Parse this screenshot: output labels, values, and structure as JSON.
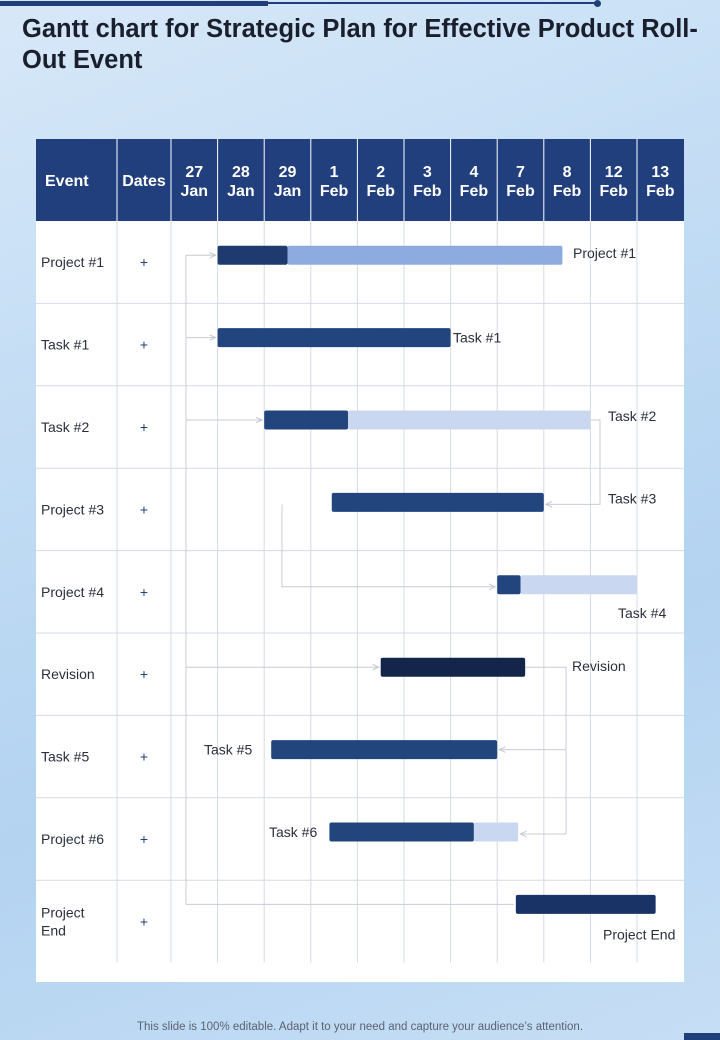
{
  "page": {
    "title": "Gantt chart for Strategic Plan for Effective Product Roll-Out Event",
    "footer": "This slide is 100% editable. Adapt it to your need and capture your audience’s attention."
  },
  "chart_data": {
    "type": "gantt",
    "columns": {
      "event": "Event",
      "dates": "Dates"
    },
    "dates": [
      [
        "27",
        "Jan"
      ],
      [
        "28",
        "Jan"
      ],
      [
        "29",
        "Jan"
      ],
      [
        "1",
        "Feb"
      ],
      [
        "2",
        "Feb"
      ],
      [
        "3",
        "Feb"
      ],
      [
        "4",
        "Feb"
      ],
      [
        "7",
        "Feb"
      ],
      [
        "8",
        "Feb"
      ],
      [
        "12",
        "Feb"
      ],
      [
        "13",
        "Feb"
      ]
    ],
    "rows": [
      {
        "event": [
          "Project #1"
        ],
        "dates_cell": "+",
        "label": "Project #1",
        "bars": [
          {
            "start": 1.0,
            "end": 2.5,
            "color": "#1e3a6e"
          },
          {
            "start": 2.5,
            "end": 8.4,
            "color": "#8eabe0"
          }
        ]
      },
      {
        "event": [
          "Task #1"
        ],
        "dates_cell": "+",
        "label": "Task #1",
        "bars": [
          {
            "start": 1.0,
            "end": 6.0,
            "color": "#22457e"
          }
        ]
      },
      {
        "event": [
          "Task #2"
        ],
        "dates_cell": "+",
        "label": "Task #2",
        "bars": [
          {
            "start": 2.0,
            "end": 3.8,
            "color": "#22457e"
          },
          {
            "start": 3.8,
            "end": 9.0,
            "color": "#c9d8f0"
          }
        ]
      },
      {
        "event": [
          "Project #3"
        ],
        "dates_cell": "+",
        "label": "Task #3",
        "bars": [
          {
            "start": 3.45,
            "end": 8.0,
            "color": "#22457e"
          }
        ]
      },
      {
        "event": [
          "Project #4"
        ],
        "dates_cell": "+",
        "label": "Task #4",
        "bars": [
          {
            "start": 7.0,
            "end": 7.5,
            "color": "#22457e"
          },
          {
            "start": 7.5,
            "end": 10.0,
            "color": "#c9d8f0"
          }
        ]
      },
      {
        "event": [
          "Revision"
        ],
        "dates_cell": "+",
        "label": "Revision",
        "bars": [
          {
            "start": 4.5,
            "end": 7.6,
            "color": "#13254a"
          }
        ]
      },
      {
        "event": [
          "Task #5"
        ],
        "dates_cell": "+",
        "label": "Task #5",
        "bars": [
          {
            "start": 2.15,
            "end": 7.0,
            "color": "#22457e"
          }
        ]
      },
      {
        "event": [
          "Project #6"
        ],
        "dates_cell": "+",
        "label": "Task #6",
        "bars": [
          {
            "start": 3.4,
            "end": 6.5,
            "color": "#22457e"
          },
          {
            "start": 6.5,
            "end": 7.45,
            "color": "#c9d8f0"
          }
        ]
      },
      {
        "event": [
          "Project",
          "End"
        ],
        "dates_cell": "+",
        "label": "Project End",
        "bars": [
          {
            "start": 7.4,
            "end": 10.4,
            "color": "#193366"
          }
        ]
      }
    ],
    "colors": {
      "header": "#223f7d",
      "grid": "#d6dbe3",
      "plus": "#223f7d",
      "arrow": "#c8ccd4"
    }
  }
}
